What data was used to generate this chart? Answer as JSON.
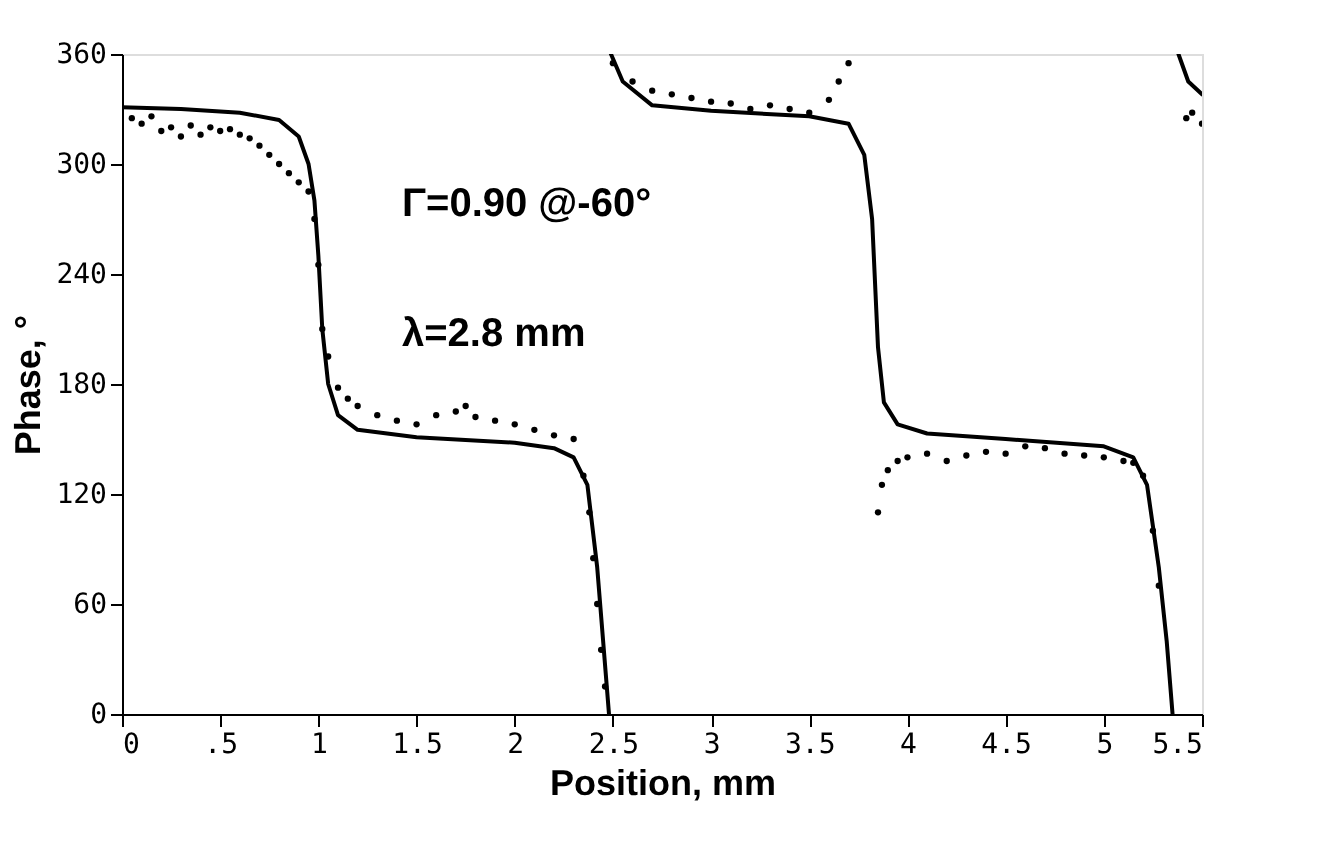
{
  "chart_data": {
    "type": "line",
    "xlabel": "Position,  mm",
    "ylabel": "Phase, °",
    "annotations": [
      "Γ=0.90  @-60°",
      "λ=2.8  mm"
    ],
    "xlim": [
      0,
      5.5
    ],
    "ylim": [
      0,
      360
    ],
    "xticks": [
      0,
      {
        "value": 0.5,
        "label": ".5"
      },
      1,
      1.5,
      2,
      2.5,
      3,
      3.5,
      4,
      4.5,
      5,
      5.5
    ],
    "yticks": [
      0,
      60,
      120,
      180,
      240,
      300,
      360
    ],
    "grid": false,
    "series": [
      {
        "color": "#000000",
        "line_style": "solid",
        "marker": "none",
        "x": [
          0,
          0.3,
          0.6,
          0.8,
          0.9,
          0.95,
          0.98,
          1.0,
          1.02,
          1.05,
          1.1,
          1.2,
          1.5,
          2.0,
          2.2,
          2.3,
          2.37,
          2.42,
          2.45,
          2.48,
          2.485,
          2.49,
          2.55,
          2.7,
          3.0,
          3.5,
          3.7,
          3.78,
          3.82,
          3.85,
          3.88,
          3.95,
          4.1,
          4.5,
          5.0,
          5.15,
          5.22,
          5.28,
          5.32,
          5.35,
          5.36,
          5.38,
          5.43,
          5.5
        ],
        "values": [
          331,
          330,
          328,
          324,
          315,
          300,
          280,
          250,
          210,
          180,
          163,
          155,
          151,
          148,
          145,
          140,
          125,
          80,
          40,
          0,
          null,
          360,
          345,
          332,
          329,
          326,
          322,
          305,
          270,
          200,
          170,
          158,
          153,
          150,
          146,
          140,
          125,
          80,
          40,
          0,
          null,
          360,
          345,
          338
        ]
      },
      {
        "type": "scatter",
        "color": "#000000",
        "marker": "circle",
        "x": [
          0.05,
          0.1,
          0.15,
          0.2,
          0.25,
          0.3,
          0.35,
          0.4,
          0.45,
          0.5,
          0.55,
          0.6,
          0.65,
          0.7,
          0.75,
          0.8,
          0.85,
          0.9,
          0.95,
          0.98,
          1.0,
          1.02,
          1.05,
          1.1,
          1.15,
          1.2,
          1.3,
          1.4,
          1.5,
          1.6,
          1.7,
          1.75,
          1.8,
          1.9,
          2.0,
          2.1,
          2.2,
          2.3,
          2.35,
          2.38,
          2.4,
          2.42,
          2.44,
          2.46,
          2.5,
          2.6,
          2.7,
          2.8,
          2.9,
          3.0,
          3.1,
          3.2,
          3.3,
          3.4,
          3.5,
          3.6,
          3.65,
          3.7,
          3.85,
          3.87,
          3.9,
          3.95,
          4.0,
          4.1,
          4.2,
          4.3,
          4.4,
          4.5,
          4.6,
          4.7,
          4.8,
          4.9,
          5.0,
          5.1,
          5.15,
          5.2,
          5.25,
          5.28,
          5.42,
          5.45,
          5.5
        ],
        "values": [
          325,
          322,
          326,
          318,
          320,
          315,
          321,
          316,
          320,
          318,
          319,
          316,
          314,
          310,
          305,
          300,
          295,
          290,
          285,
          270,
          245,
          210,
          195,
          178,
          172,
          168,
          163,
          160,
          158,
          163,
          165,
          168,
          162,
          160,
          158,
          155,
          152,
          150,
          130,
          110,
          85,
          60,
          35,
          15,
          355,
          345,
          340,
          338,
          336,
          334,
          333,
          330,
          332,
          330,
          328,
          335,
          345,
          355,
          110,
          125,
          133,
          138,
          140,
          142,
          138,
          141,
          143,
          142,
          146,
          145,
          142,
          141,
          140,
          138,
          137,
          130,
          100,
          70,
          325,
          328,
          322
        ]
      }
    ]
  }
}
